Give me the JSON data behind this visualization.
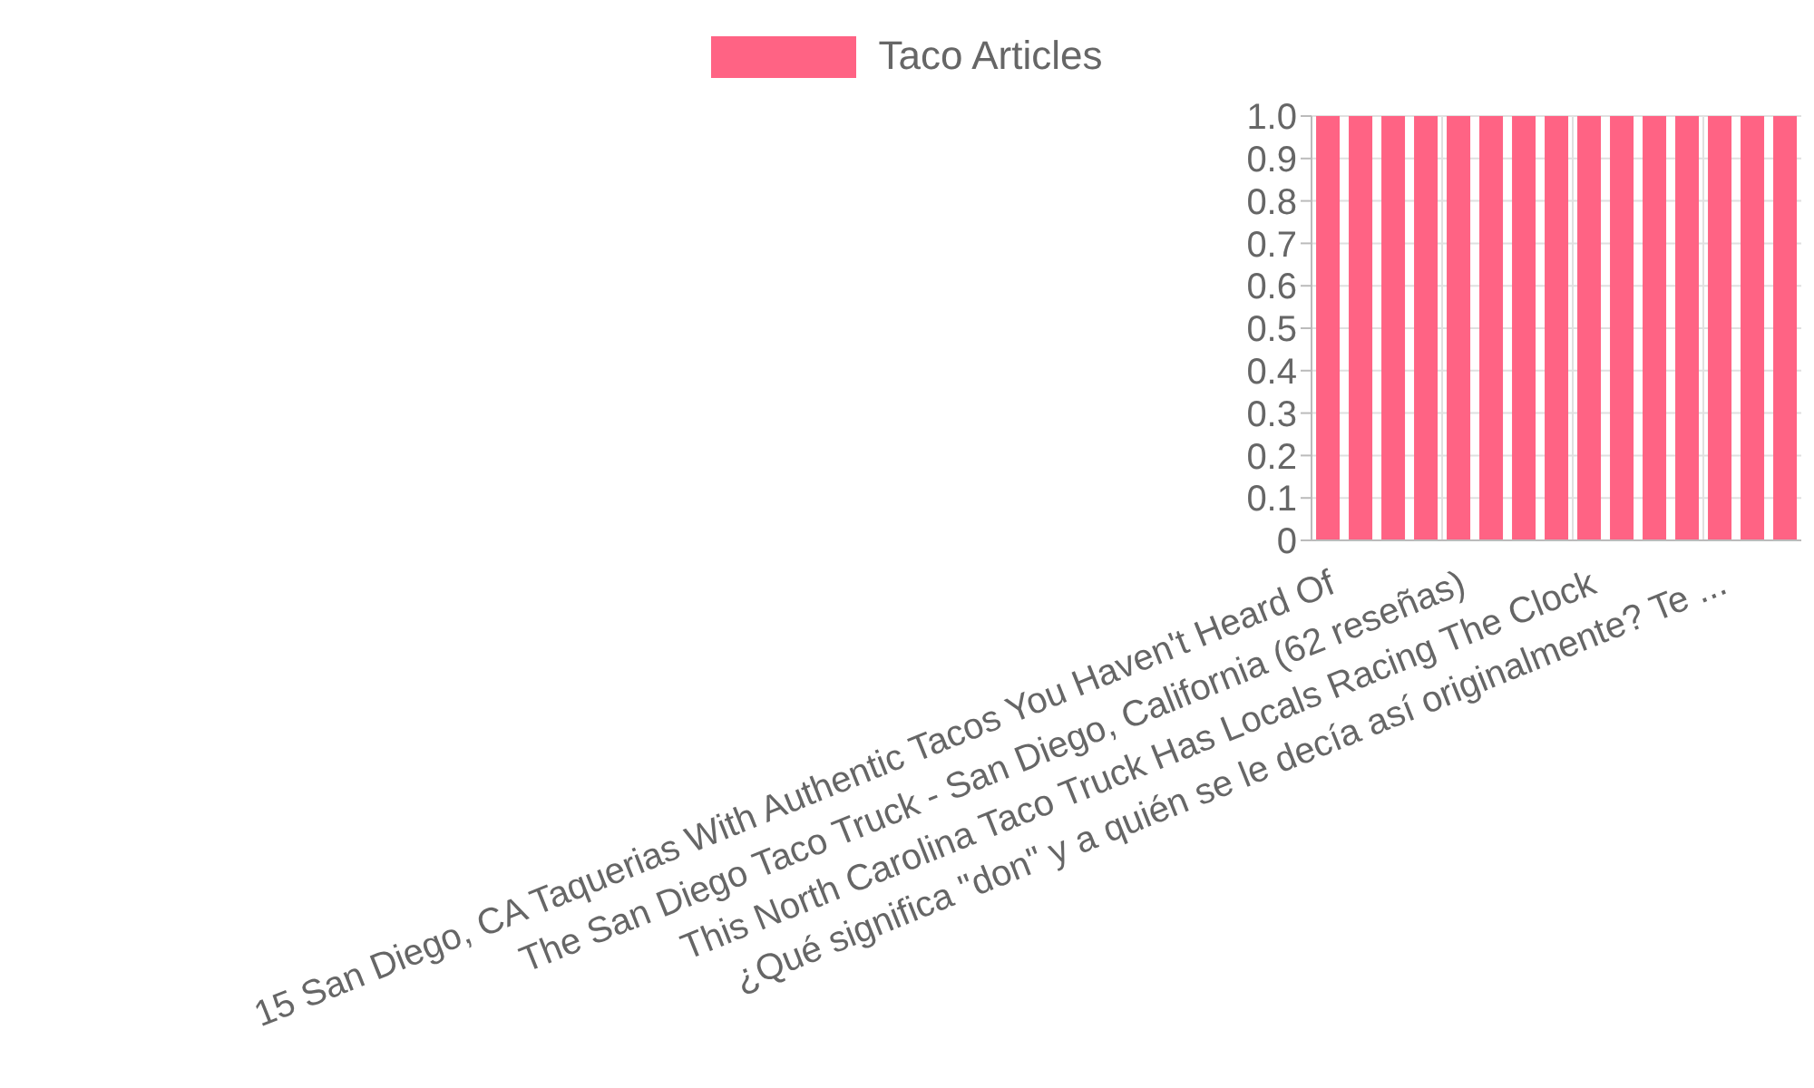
{
  "chart_data": {
    "type": "bar",
    "categories": [
      "15 San Diego, CA Taquerias With Authentic Tacos You Haven't Heard Of",
      null,
      null,
      null,
      "The San Diego Taco Truck - San Diego, California (62 reseñas)",
      null,
      null,
      null,
      "This North Carolina Taco Truck Has Locals Racing The Clock",
      null,
      null,
      null,
      "¿Qué significa \"don\" y a quién se le decía así originalmente? Te ...",
      null,
      null
    ],
    "series": [
      {
        "name": "Taco Articles",
        "color": "#ff6384",
        "values": [
          1,
          1,
          1,
          1,
          1,
          1,
          1,
          1,
          1,
          1,
          1,
          1,
          1,
          1,
          1
        ]
      }
    ],
    "ylim": [
      0,
      1
    ],
    "yticks": [
      0,
      0.1,
      0.2,
      0.3,
      0.4,
      0.5,
      0.6,
      0.7,
      0.8,
      0.9,
      {
        "value": 1,
        "label": "1.0"
      }
    ],
    "grid": true,
    "legend": "top"
  }
}
